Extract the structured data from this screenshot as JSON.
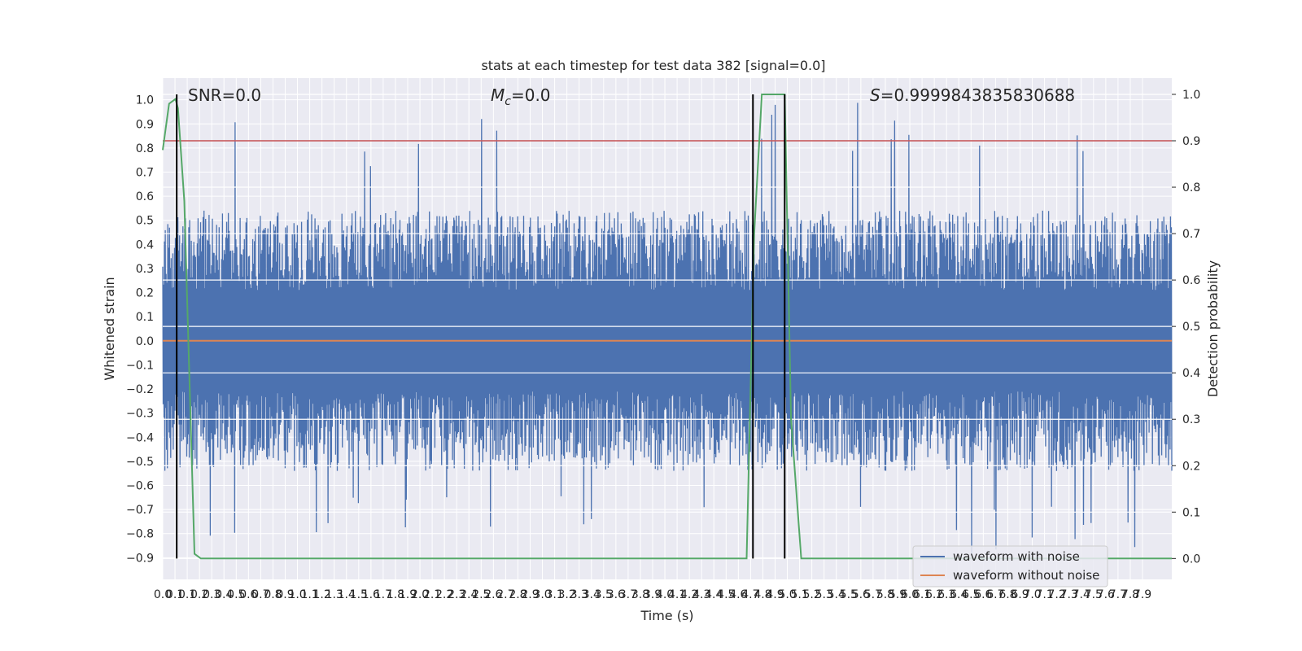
{
  "chart_data": {
    "type": "line",
    "title": "stats at each timestep for test data 382 [signal=0.0]",
    "xlabel": "Time (s)",
    "ylabel_left": "Whitened strain",
    "ylabel_right": "Detection probability",
    "xlim": [
      0.0,
      7.95
    ],
    "ylim_left": [
      -0.99,
      1.09
    ],
    "ylim_right": [
      -0.045,
      1.035
    ],
    "x_ticks": [
      "0.0",
      "0.1",
      "0.1",
      "0.2",
      "0.3",
      "0.4",
      "0.5",
      "0.6",
      "0.7",
      "0.8",
      "0.9",
      "1.0",
      "1.1",
      "1.2",
      "1.3",
      "1.4",
      "1.5",
      "1.6",
      "1.7",
      "1.8",
      "1.9",
      "2.0",
      "2.1",
      "2.2",
      "2.3",
      "2.4",
      "2.5",
      "2.6",
      "2.7",
      "2.8",
      "2.9",
      "3.0",
      "3.1",
      "3.2",
      "3.3",
      "3.4",
      "3.5",
      "3.6",
      "3.7",
      "3.8",
      "3.9",
      "4.0",
      "4.1",
      "4.2",
      "4.3",
      "4.4",
      "4.5",
      "4.6",
      "4.7",
      "4.8",
      "4.9",
      "5.0",
      "5.1",
      "5.2",
      "5.3",
      "5.4",
      "5.5",
      "5.6",
      "5.7",
      "5.8",
      "5.9",
      "6.0",
      "6.1",
      "6.2",
      "6.3",
      "6.4",
      "6.5",
      "6.6",
      "6.7",
      "6.8",
      "6.9",
      "7.0",
      "7.1",
      "7.2",
      "7.3",
      "7.4",
      "7.5",
      "7.6",
      "7.7",
      "7.8",
      "7.9"
    ],
    "y_ticks_left": [
      "1.0",
      "0.9",
      "0.8",
      "0.7",
      "0.6",
      "0.5",
      "0.4",
      "0.3",
      "0.2",
      "0.1",
      "0.0",
      "−0.1",
      "−0.2",
      "−0.3",
      "−0.4",
      "−0.5",
      "−0.6",
      "−0.7",
      "−0.8",
      "−0.9"
    ],
    "y_ticks_right": [
      "1.0",
      "0.9",
      "0.8",
      "0.7",
      "0.6",
      "0.5",
      "0.4",
      "0.3",
      "0.2",
      "0.1",
      "0.0"
    ],
    "annotations": {
      "snr": "SNR=0.0",
      "mc": "=0.0",
      "mc_symbol": "M",
      "mc_sub": "c",
      "s": "=0.9999843835830688",
      "s_symbol": "S"
    },
    "threshold": 0.9,
    "vertical_markers": [
      0.11,
      4.65,
      4.9
    ],
    "series": [
      {
        "name": "waveform with noise",
        "axis": "left",
        "color": "#4c72b0",
        "style": "dense noise",
        "approx_envelope": [
          -0.6,
          0.6
        ],
        "spike_extremes": [
          -0.9,
          1.0
        ]
      },
      {
        "name": "waveform without noise",
        "axis": "left",
        "color": "#dd8452",
        "x": [
          0.0,
          7.95
        ],
        "y": [
          0.0,
          0.0
        ]
      },
      {
        "name": "detection probability",
        "axis": "right",
        "color": "#55a868",
        "x": [
          0.0,
          0.05,
          0.1,
          0.12,
          0.17,
          0.25,
          0.3,
          4.6,
          4.66,
          4.72,
          4.9,
          4.95,
          5.03,
          7.95
        ],
        "y": [
          0.88,
          0.98,
          0.99,
          0.97,
          0.77,
          0.01,
          0.0,
          0.0,
          0.7,
          1.0,
          1.0,
          0.3,
          0.0,
          0.0
        ]
      }
    ],
    "threshold_color": "#c44e52",
    "marker_color": "#000000",
    "legend": "lower-right"
  }
}
